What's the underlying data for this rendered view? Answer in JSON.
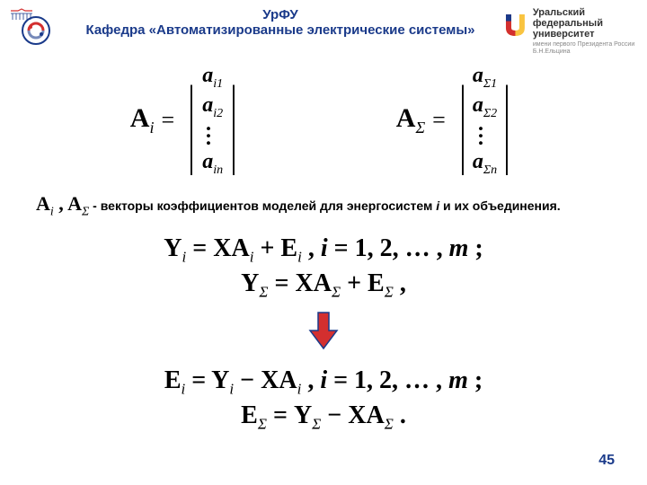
{
  "header": {
    "line1": "УрФУ",
    "line2": "Кафедра «Автоматизированные электрические системы»",
    "uni_name1": "Уральский",
    "uni_name2": "федеральный",
    "uni_name3": "университет",
    "uni_sub": "имени первого Президента России Б.Н.Ельцина"
  },
  "colors": {
    "header_text": "#1a3a8a",
    "arrow_fill": "#d32f2f",
    "arrow_border": "#1a3a8a",
    "logo_u_yellow": "#f9c440",
    "logo_u_red": "#d32f2f",
    "logo_u_blue": "#1a3a8a"
  },
  "vec_Ai": {
    "label_base": "A",
    "label_sub": "i",
    "items": [
      "a|i1",
      "a|i2",
      "…",
      "a|in"
    ]
  },
  "vec_As": {
    "label_base": "A",
    "label_sub": "Σ",
    "items": [
      "a|Σ1",
      "a|Σ2",
      "…",
      "a|Σn"
    ]
  },
  "desc": {
    "sym1_base": "A",
    "sym1_sub": "i",
    "sym2_base": "A",
    "sym2_sub": "Σ",
    "text1": " - векторы коэффициентов моделей для энергосистем ",
    "ital": "i",
    "text2": " и их объединения."
  },
  "eq_block1": {
    "l1": "Y_i = XA_i + E_i , i = 1, 2, … , m ;",
    "l2": "Y_Σ = XA_Σ + E_Σ ,"
  },
  "eq_block2": {
    "l1": "E_i = Y_i − XA_i , i = 1, 2, … , m ;",
    "l2": "E_Σ = Y_Σ − XA_Σ ."
  },
  "page_number": "45"
}
